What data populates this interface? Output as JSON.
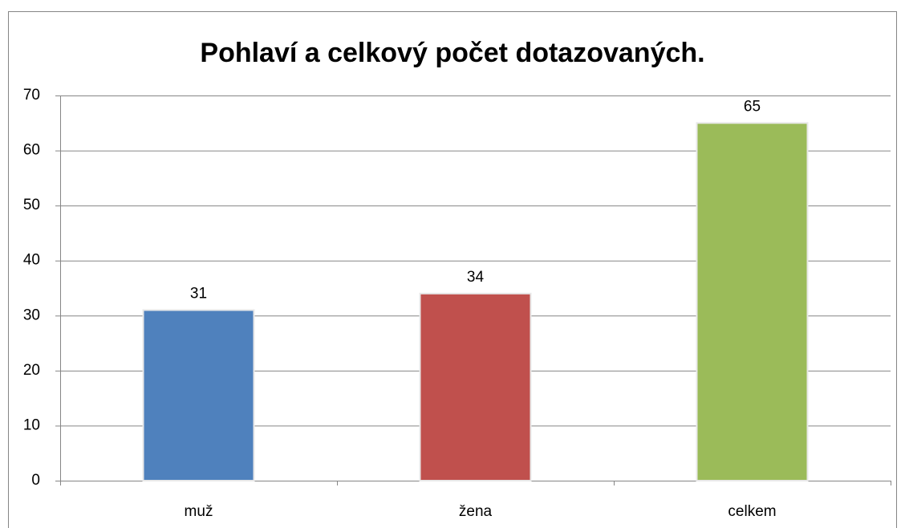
{
  "chart_data": {
    "type": "bar",
    "title": "Pohlaví a celkový počet dotazovaných.",
    "categories": [
      "muž",
      "žena",
      "celkem"
    ],
    "values": [
      31,
      34,
      65
    ],
    "colors": [
      "#4f81bd",
      "#c0504d",
      "#9bbb59"
    ],
    "ylim": [
      0,
      70
    ],
    "yticks": [
      0,
      10,
      20,
      30,
      40,
      50,
      60,
      70
    ],
    "grid": true
  }
}
